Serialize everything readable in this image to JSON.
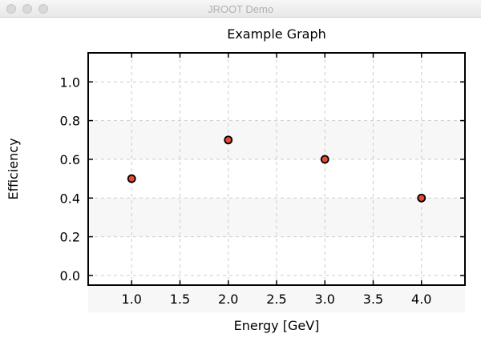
{
  "window": {
    "title": "JROOT Demo"
  },
  "chart_data": {
    "type": "scatter",
    "title": "Example Graph",
    "xlabel": "Energy [GeV]",
    "ylabel": "Efficiency",
    "x": [
      1.0,
      2.0,
      3.0,
      4.0
    ],
    "y": [
      0.5,
      0.7,
      0.6,
      0.4
    ],
    "xlim": [
      0.55,
      4.45
    ],
    "ylim": [
      -0.05,
      1.15
    ],
    "xticks": [
      "1.0",
      "1.5",
      "2.0",
      "2.5",
      "3.0",
      "3.5",
      "4.0"
    ],
    "yticks": [
      "0.0",
      "0.2",
      "0.4",
      "0.6",
      "0.8",
      "1.0"
    ],
    "grid": true,
    "marker_color": "#e34a33",
    "marker_edge_color": "#000000"
  }
}
